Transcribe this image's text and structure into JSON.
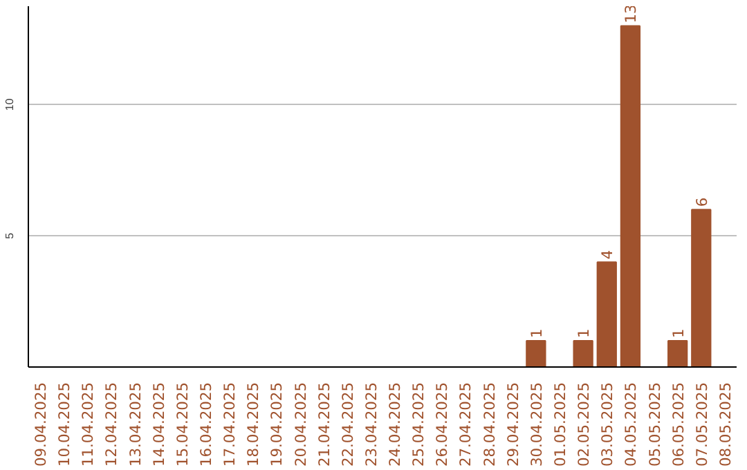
{
  "chart_data": {
    "type": "bar",
    "categories": [
      "09.04.2025",
      "10.04.2025",
      "11.04.2025",
      "12.04.2025",
      "13.04.2025",
      "14.04.2025",
      "15.04.2025",
      "16.04.2025",
      "17.04.2025",
      "18.04.2025",
      "19.04.2025",
      "20.04.2025",
      "21.04.2025",
      "22.04.2025",
      "23.04.2025",
      "24.04.2025",
      "25.04.2025",
      "26.04.2025",
      "27.04.2025",
      "28.04.2025",
      "29.04.2025",
      "30.04.2025",
      "01.05.2025",
      "02.05.2025",
      "03.05.2025",
      "04.05.2025",
      "05.05.2025",
      "06.05.2025",
      "07.05.2025",
      "08.05.2025"
    ],
    "values": [
      0,
      0,
      0,
      0,
      0,
      0,
      0,
      0,
      0,
      0,
      0,
      0,
      0,
      0,
      0,
      0,
      0,
      0,
      0,
      0,
      0,
      1,
      0,
      1,
      4,
      13,
      0,
      1,
      6,
      0
    ],
    "value_labels": [
      null,
      null,
      null,
      null,
      null,
      null,
      null,
      null,
      null,
      null,
      null,
      null,
      null,
      null,
      null,
      null,
      null,
      null,
      null,
      null,
      null,
      "1",
      null,
      "1",
      "4",
      "13",
      null,
      "1",
      "6",
      null
    ],
    "color": "#a0522d",
    "ylim": [
      0,
      13.75
    ],
    "yticks": [
      5,
      10
    ],
    "grid": "y"
  }
}
